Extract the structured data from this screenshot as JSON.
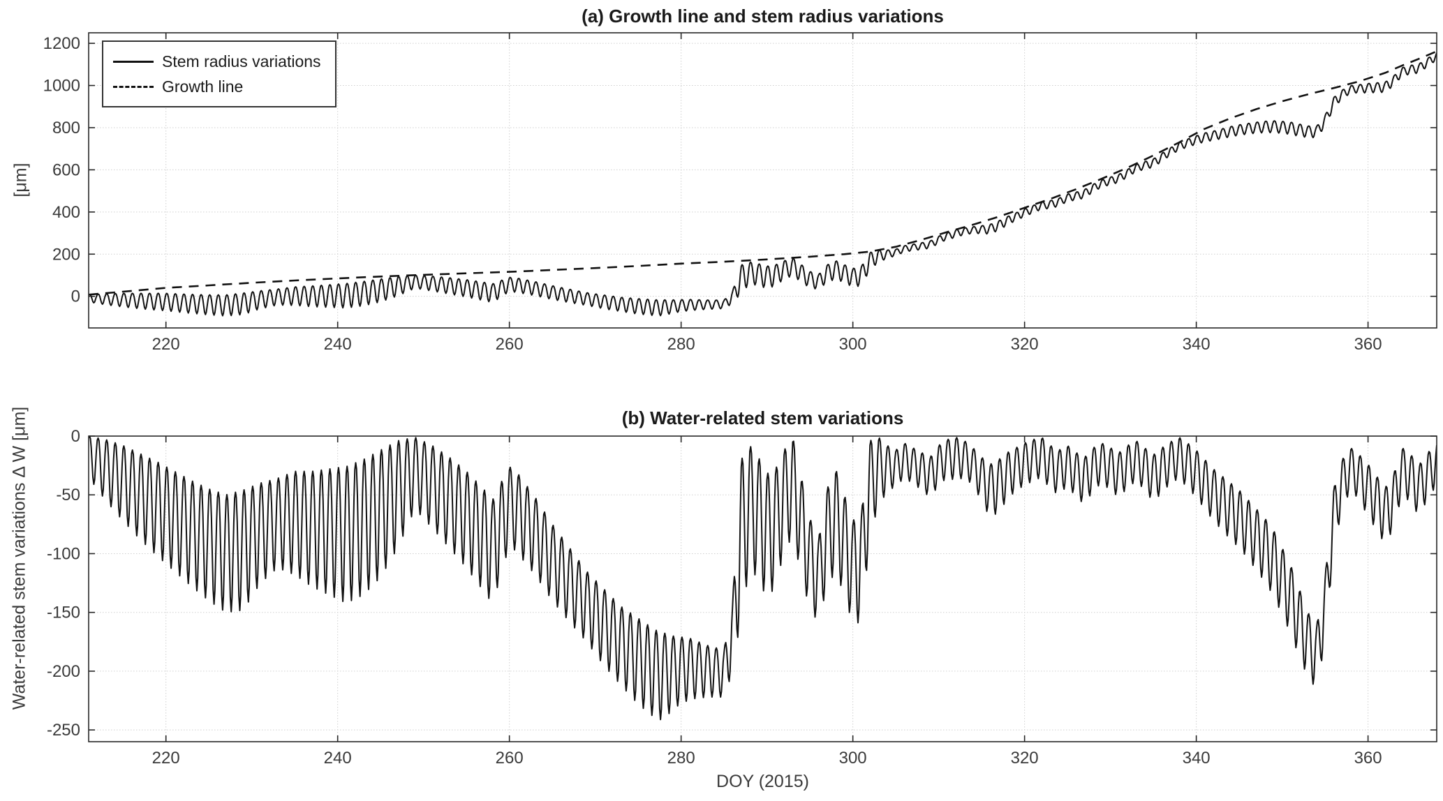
{
  "colors": {
    "line": "#111111",
    "axis": "#262626",
    "grid": "#cfcfcf",
    "text": "#3a3a3a",
    "background": "#ffffff"
  },
  "chart_data": [
    {
      "type": "line",
      "title": "(a) Growth line and stem radius variations",
      "xlabel": "",
      "ylabel": "[μm]",
      "xlim": [
        211,
        368
      ],
      "ylim": [
        -150,
        1250
      ],
      "x_ticks": [
        220,
        240,
        260,
        280,
        300,
        320,
        340,
        360
      ],
      "y_ticks": [
        0,
        200,
        400,
        600,
        800,
        1000,
        1200
      ],
      "grid": true,
      "legend": {
        "position": "top-left",
        "entries": [
          {
            "label": "Stem radius variations",
            "style": "solid"
          },
          {
            "label": "Growth line",
            "style": "dashed"
          }
        ]
      },
      "series": [
        {
          "name": "Growth line",
          "style": "dashed",
          "points": [
            [
              211,
              8
            ],
            [
              215,
              22
            ],
            [
              220,
              40
            ],
            [
              225,
              52
            ],
            [
              230,
              64
            ],
            [
              235,
              75
            ],
            [
              240,
              85
            ],
            [
              245,
              94
            ],
            [
              250,
              102
            ],
            [
              255,
              109
            ],
            [
              260,
              116
            ],
            [
              265,
              125
            ],
            [
              270,
              134
            ],
            [
              275,
              144
            ],
            [
              280,
              155
            ],
            [
              285,
              164
            ],
            [
              290,
              175
            ],
            [
              295,
              188
            ],
            [
              299,
              200
            ],
            [
              302,
              212
            ],
            [
              305,
              235
            ],
            [
              308,
              268
            ],
            [
              311,
              305
            ],
            [
              314,
              340
            ],
            [
              317,
              378
            ],
            [
              320,
              420
            ],
            [
              323,
              462
            ],
            [
              326,
              508
            ],
            [
              329,
              558
            ],
            [
              332,
              610
            ],
            [
              335,
              668
            ],
            [
              338,
              730
            ],
            [
              341,
              795
            ],
            [
              344,
              845
            ],
            [
              347,
              888
            ],
            [
              350,
              925
            ],
            [
              353,
              958
            ],
            [
              356,
              988
            ],
            [
              359,
              1020
            ],
            [
              362,
              1060
            ],
            [
              364,
              1095
            ],
            [
              366,
              1128
            ],
            [
              368,
              1162
            ]
          ]
        },
        {
          "name": "Stem radius variations",
          "style": "solid",
          "derivation": "growth_line_value_plus_delta_w_oscillation"
        }
      ]
    },
    {
      "type": "line",
      "title": "(b) Water-related stem variations",
      "xlabel": "DOY (2015)",
      "ylabel": "Water-related stem variations  Δ W [μm]",
      "xlim": [
        211,
        368
      ],
      "ylim": [
        -260,
        0
      ],
      "x_ticks": [
        220,
        240,
        260,
        280,
        300,
        320,
        340,
        360
      ],
      "y_ticks": [
        0,
        -50,
        -100,
        -150,
        -200,
        -250
      ],
      "grid": true,
      "series": [
        {
          "name": "Δ W",
          "style": "solid",
          "derivation": "daily_oscillation_between_envelopes"
        }
      ],
      "delta_w_envelope": {
        "samples_per_day": 10,
        "phase": 0.1,
        "sharpness": 1.3,
        "max": [
          [
            211,
            0
          ],
          [
            213,
            -3
          ],
          [
            215,
            -8
          ],
          [
            217,
            -15
          ],
          [
            219,
            -22
          ],
          [
            221,
            -30
          ],
          [
            223,
            -38
          ],
          [
            225,
            -45
          ],
          [
            227,
            -50
          ],
          [
            229,
            -46
          ],
          [
            231,
            -40
          ],
          [
            233,
            -36
          ],
          [
            235,
            -30
          ],
          [
            237,
            -30
          ],
          [
            239,
            -28
          ],
          [
            241,
            -26
          ],
          [
            243,
            -20
          ],
          [
            245,
            -12
          ],
          [
            247,
            -4
          ],
          [
            249,
            -1
          ],
          [
            251,
            -8
          ],
          [
            253,
            -18
          ],
          [
            255,
            -30
          ],
          [
            257,
            -45
          ],
          [
            258,
            -55
          ],
          [
            259,
            -40
          ],
          [
            260,
            -26
          ],
          [
            261,
            -32
          ],
          [
            263,
            -52
          ],
          [
            265,
            -75
          ],
          [
            267,
            -95
          ],
          [
            269,
            -115
          ],
          [
            271,
            -130
          ],
          [
            273,
            -145
          ],
          [
            275,
            -155
          ],
          [
            277,
            -165
          ],
          [
            279,
            -170
          ],
          [
            281,
            -172
          ],
          [
            283,
            -178
          ],
          [
            285,
            -182
          ],
          [
            286,
            -140
          ],
          [
            287,
            -20
          ],
          [
            288,
            -8
          ],
          [
            289,
            -18
          ],
          [
            290,
            -32
          ],
          [
            291,
            -28
          ],
          [
            292,
            -12
          ],
          [
            293,
            -1
          ],
          [
            294,
            -35
          ],
          [
            295,
            -70
          ],
          [
            296,
            -88
          ],
          [
            297,
            -45
          ],
          [
            298,
            -28
          ],
          [
            299,
            -50
          ],
          [
            300,
            -72
          ],
          [
            301,
            -65
          ],
          [
            302,
            -4
          ],
          [
            303,
            -1
          ],
          [
            304,
            -8
          ],
          [
            305,
            -12
          ],
          [
            306,
            -6
          ],
          [
            307,
            -10
          ],
          [
            308,
            -14
          ],
          [
            309,
            -18
          ],
          [
            310,
            -8
          ],
          [
            311,
            -3
          ],
          [
            312,
            -1
          ],
          [
            313,
            -4
          ],
          [
            314,
            -10
          ],
          [
            315,
            -18
          ],
          [
            316,
            -24
          ],
          [
            317,
            -20
          ],
          [
            318,
            -14
          ],
          [
            319,
            -10
          ],
          [
            320,
            -6
          ],
          [
            321,
            -3
          ],
          [
            322,
            -1
          ],
          [
            323,
            -8
          ],
          [
            324,
            -12
          ],
          [
            325,
            -8
          ],
          [
            326,
            -14
          ],
          [
            327,
            -18
          ],
          [
            328,
            -10
          ],
          [
            329,
            -6
          ],
          [
            330,
            -10
          ],
          [
            331,
            -14
          ],
          [
            332,
            -8
          ],
          [
            333,
            -4
          ],
          [
            334,
            -10
          ],
          [
            335,
            -16
          ],
          [
            336,
            -10
          ],
          [
            337,
            -5
          ],
          [
            338,
            -1
          ],
          [
            339,
            -6
          ],
          [
            340,
            -12
          ],
          [
            341,
            -20
          ],
          [
            342,
            -28
          ],
          [
            343,
            -34
          ],
          [
            344,
            -40
          ],
          [
            345,
            -46
          ],
          [
            346,
            -54
          ],
          [
            347,
            -62
          ],
          [
            348,
            -70
          ],
          [
            349,
            -80
          ],
          [
            350,
            -95
          ],
          [
            351,
            -110
          ],
          [
            352,
            -130
          ],
          [
            353,
            -150
          ],
          [
            354,
            -162
          ],
          [
            355,
            -120
          ],
          [
            356,
            -45
          ],
          [
            357,
            -20
          ],
          [
            358,
            -10
          ],
          [
            359,
            -16
          ],
          [
            360,
            -24
          ],
          [
            361,
            -34
          ],
          [
            362,
            -44
          ],
          [
            363,
            -32
          ],
          [
            364,
            -10
          ],
          [
            365,
            -16
          ],
          [
            366,
            -24
          ],
          [
            367,
            -14
          ],
          [
            368,
            -6
          ]
        ],
        "min": [
          [
            211,
            -35
          ],
          [
            213,
            -55
          ],
          [
            215,
            -72
          ],
          [
            217,
            -88
          ],
          [
            219,
            -102
          ],
          [
            221,
            -115
          ],
          [
            223,
            -128
          ],
          [
            225,
            -140
          ],
          [
            227,
            -150
          ],
          [
            229,
            -148
          ],
          [
            231,
            -125
          ],
          [
            233,
            -112
          ],
          [
            235,
            -118
          ],
          [
            237,
            -128
          ],
          [
            239,
            -135
          ],
          [
            241,
            -142
          ],
          [
            243,
            -135
          ],
          [
            245,
            -120
          ],
          [
            247,
            -95
          ],
          [
            249,
            -62
          ],
          [
            251,
            -78
          ],
          [
            253,
            -95
          ],
          [
            255,
            -112
          ],
          [
            257,
            -132
          ],
          [
            258,
            -142
          ],
          [
            259,
            -120
          ],
          [
            260,
            -92
          ],
          [
            261,
            -100
          ],
          [
            263,
            -118
          ],
          [
            265,
            -140
          ],
          [
            267,
            -158
          ],
          [
            269,
            -175
          ],
          [
            271,
            -195
          ],
          [
            273,
            -212
          ],
          [
            275,
            -228
          ],
          [
            277,
            -240
          ],
          [
            278,
            -242
          ],
          [
            279,
            -232
          ],
          [
            281,
            -224
          ],
          [
            283,
            -222
          ],
          [
            285,
            -222
          ],
          [
            286,
            -200
          ],
          [
            287,
            -152
          ],
          [
            288,
            -112
          ],
          [
            289,
            -122
          ],
          [
            290,
            -138
          ],
          [
            291,
            -128
          ],
          [
            292,
            -98
          ],
          [
            293,
            -85
          ],
          [
            294,
            -118
          ],
          [
            295,
            -148
          ],
          [
            296,
            -158
          ],
          [
            297,
            -128
          ],
          [
            298,
            -115
          ],
          [
            299,
            -135
          ],
          [
            300,
            -160
          ],
          [
            301,
            -158
          ],
          [
            302,
            -85
          ],
          [
            303,
            -58
          ],
          [
            304,
            -48
          ],
          [
            305,
            -42
          ],
          [
            306,
            -36
          ],
          [
            307,
            -40
          ],
          [
            308,
            -46
          ],
          [
            309,
            -52
          ],
          [
            310,
            -42
          ],
          [
            311,
            -35
          ],
          [
            312,
            -38
          ],
          [
            313,
            -35
          ],
          [
            314,
            -42
          ],
          [
            315,
            -55
          ],
          [
            316,
            -70
          ],
          [
            317,
            -64
          ],
          [
            318,
            -54
          ],
          [
            319,
            -46
          ],
          [
            320,
            -42
          ],
          [
            321,
            -38
          ],
          [
            322,
            -35
          ],
          [
            323,
            -45
          ],
          [
            324,
            -50
          ],
          [
            325,
            -42
          ],
          [
            326,
            -52
          ],
          [
            327,
            -58
          ],
          [
            328,
            -46
          ],
          [
            329,
            -40
          ],
          [
            330,
            -46
          ],
          [
            331,
            -52
          ],
          [
            332,
            -44
          ],
          [
            333,
            -38
          ],
          [
            334,
            -46
          ],
          [
            335,
            -56
          ],
          [
            336,
            -48
          ],
          [
            337,
            -40
          ],
          [
            338,
            -36
          ],
          [
            339,
            -44
          ],
          [
            340,
            -52
          ],
          [
            341,
            -62
          ],
          [
            342,
            -72
          ],
          [
            343,
            -80
          ],
          [
            344,
            -88
          ],
          [
            345,
            -95
          ],
          [
            346,
            -104
          ],
          [
            347,
            -114
          ],
          [
            348,
            -124
          ],
          [
            349,
            -136
          ],
          [
            350,
            -152
          ],
          [
            351,
            -168
          ],
          [
            352,
            -188
          ],
          [
            353,
            -205
          ],
          [
            354,
            -215
          ],
          [
            355,
            -175
          ],
          [
            356,
            -95
          ],
          [
            357,
            -62
          ],
          [
            358,
            -45
          ],
          [
            359,
            -55
          ],
          [
            360,
            -68
          ],
          [
            361,
            -80
          ],
          [
            362,
            -92
          ],
          [
            363,
            -78
          ],
          [
            364,
            -48
          ],
          [
            365,
            -58
          ],
          [
            366,
            -68
          ],
          [
            367,
            -52
          ],
          [
            368,
            -42
          ]
        ]
      }
    }
  ]
}
